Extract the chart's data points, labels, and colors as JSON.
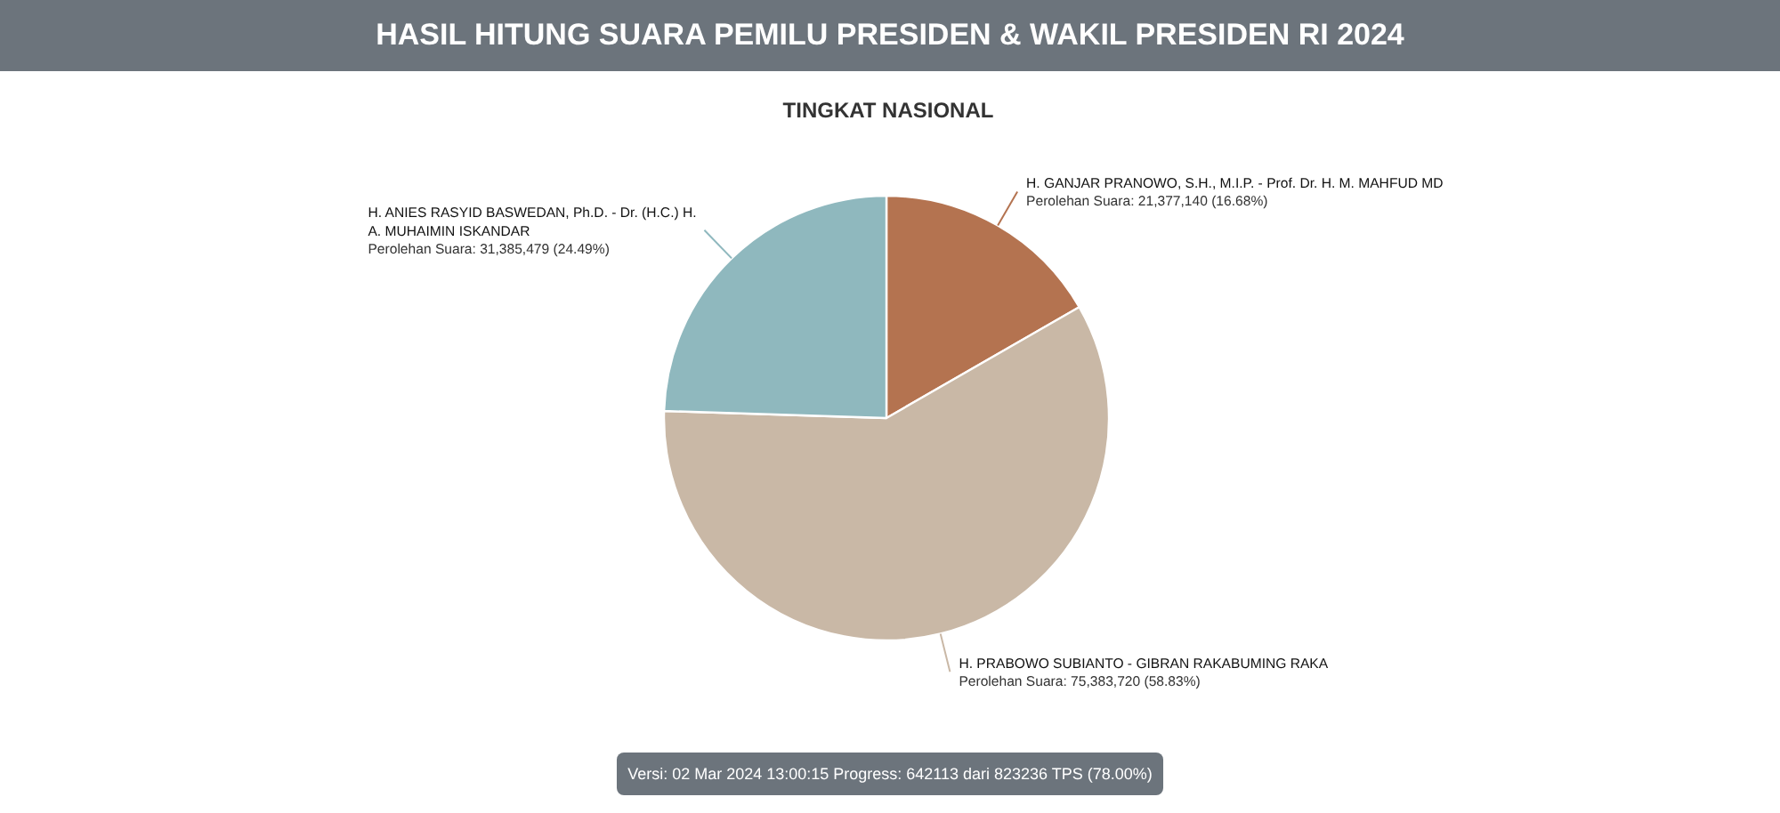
{
  "chart_data": {
    "type": "pie",
    "title": "HASIL HITUNG SUARA PEMILU PRESIDEN & WAKIL PRESIDEN RI 2024",
    "subtitle": "TINGKAT NASIONAL",
    "categories": [
      "H. GANJAR PRANOWO, S.H., M.I.P. - Prof. Dr. H. M. MAHFUD MD",
      "H. PRABOWO SUBIANTO - GIBRAN RAKABUMING RAKA",
      "H. ANIES RASYID BASWEDAN, Ph.D. - Dr. (H.C.) H. A. MUHAIMIN ISKANDAR"
    ],
    "values": [
      21377140,
      75383720,
      31385479
    ],
    "colors": [
      "#b47350",
      "#c9b8a6",
      "#8fb8be"
    ],
    "value_labels": [
      "Perolehan Suara: 21,377,140 (16.68%)",
      "Perolehan Suara: 75,383,720 (58.83%)",
      "Perolehan Suara: 31,385,479 (24.49%)"
    ],
    "annotations": [
      "Versi: 02 Mar 2024 13:00:15 Progress: 642113 dari 823236 TPS (78.00%)"
    ]
  }
}
